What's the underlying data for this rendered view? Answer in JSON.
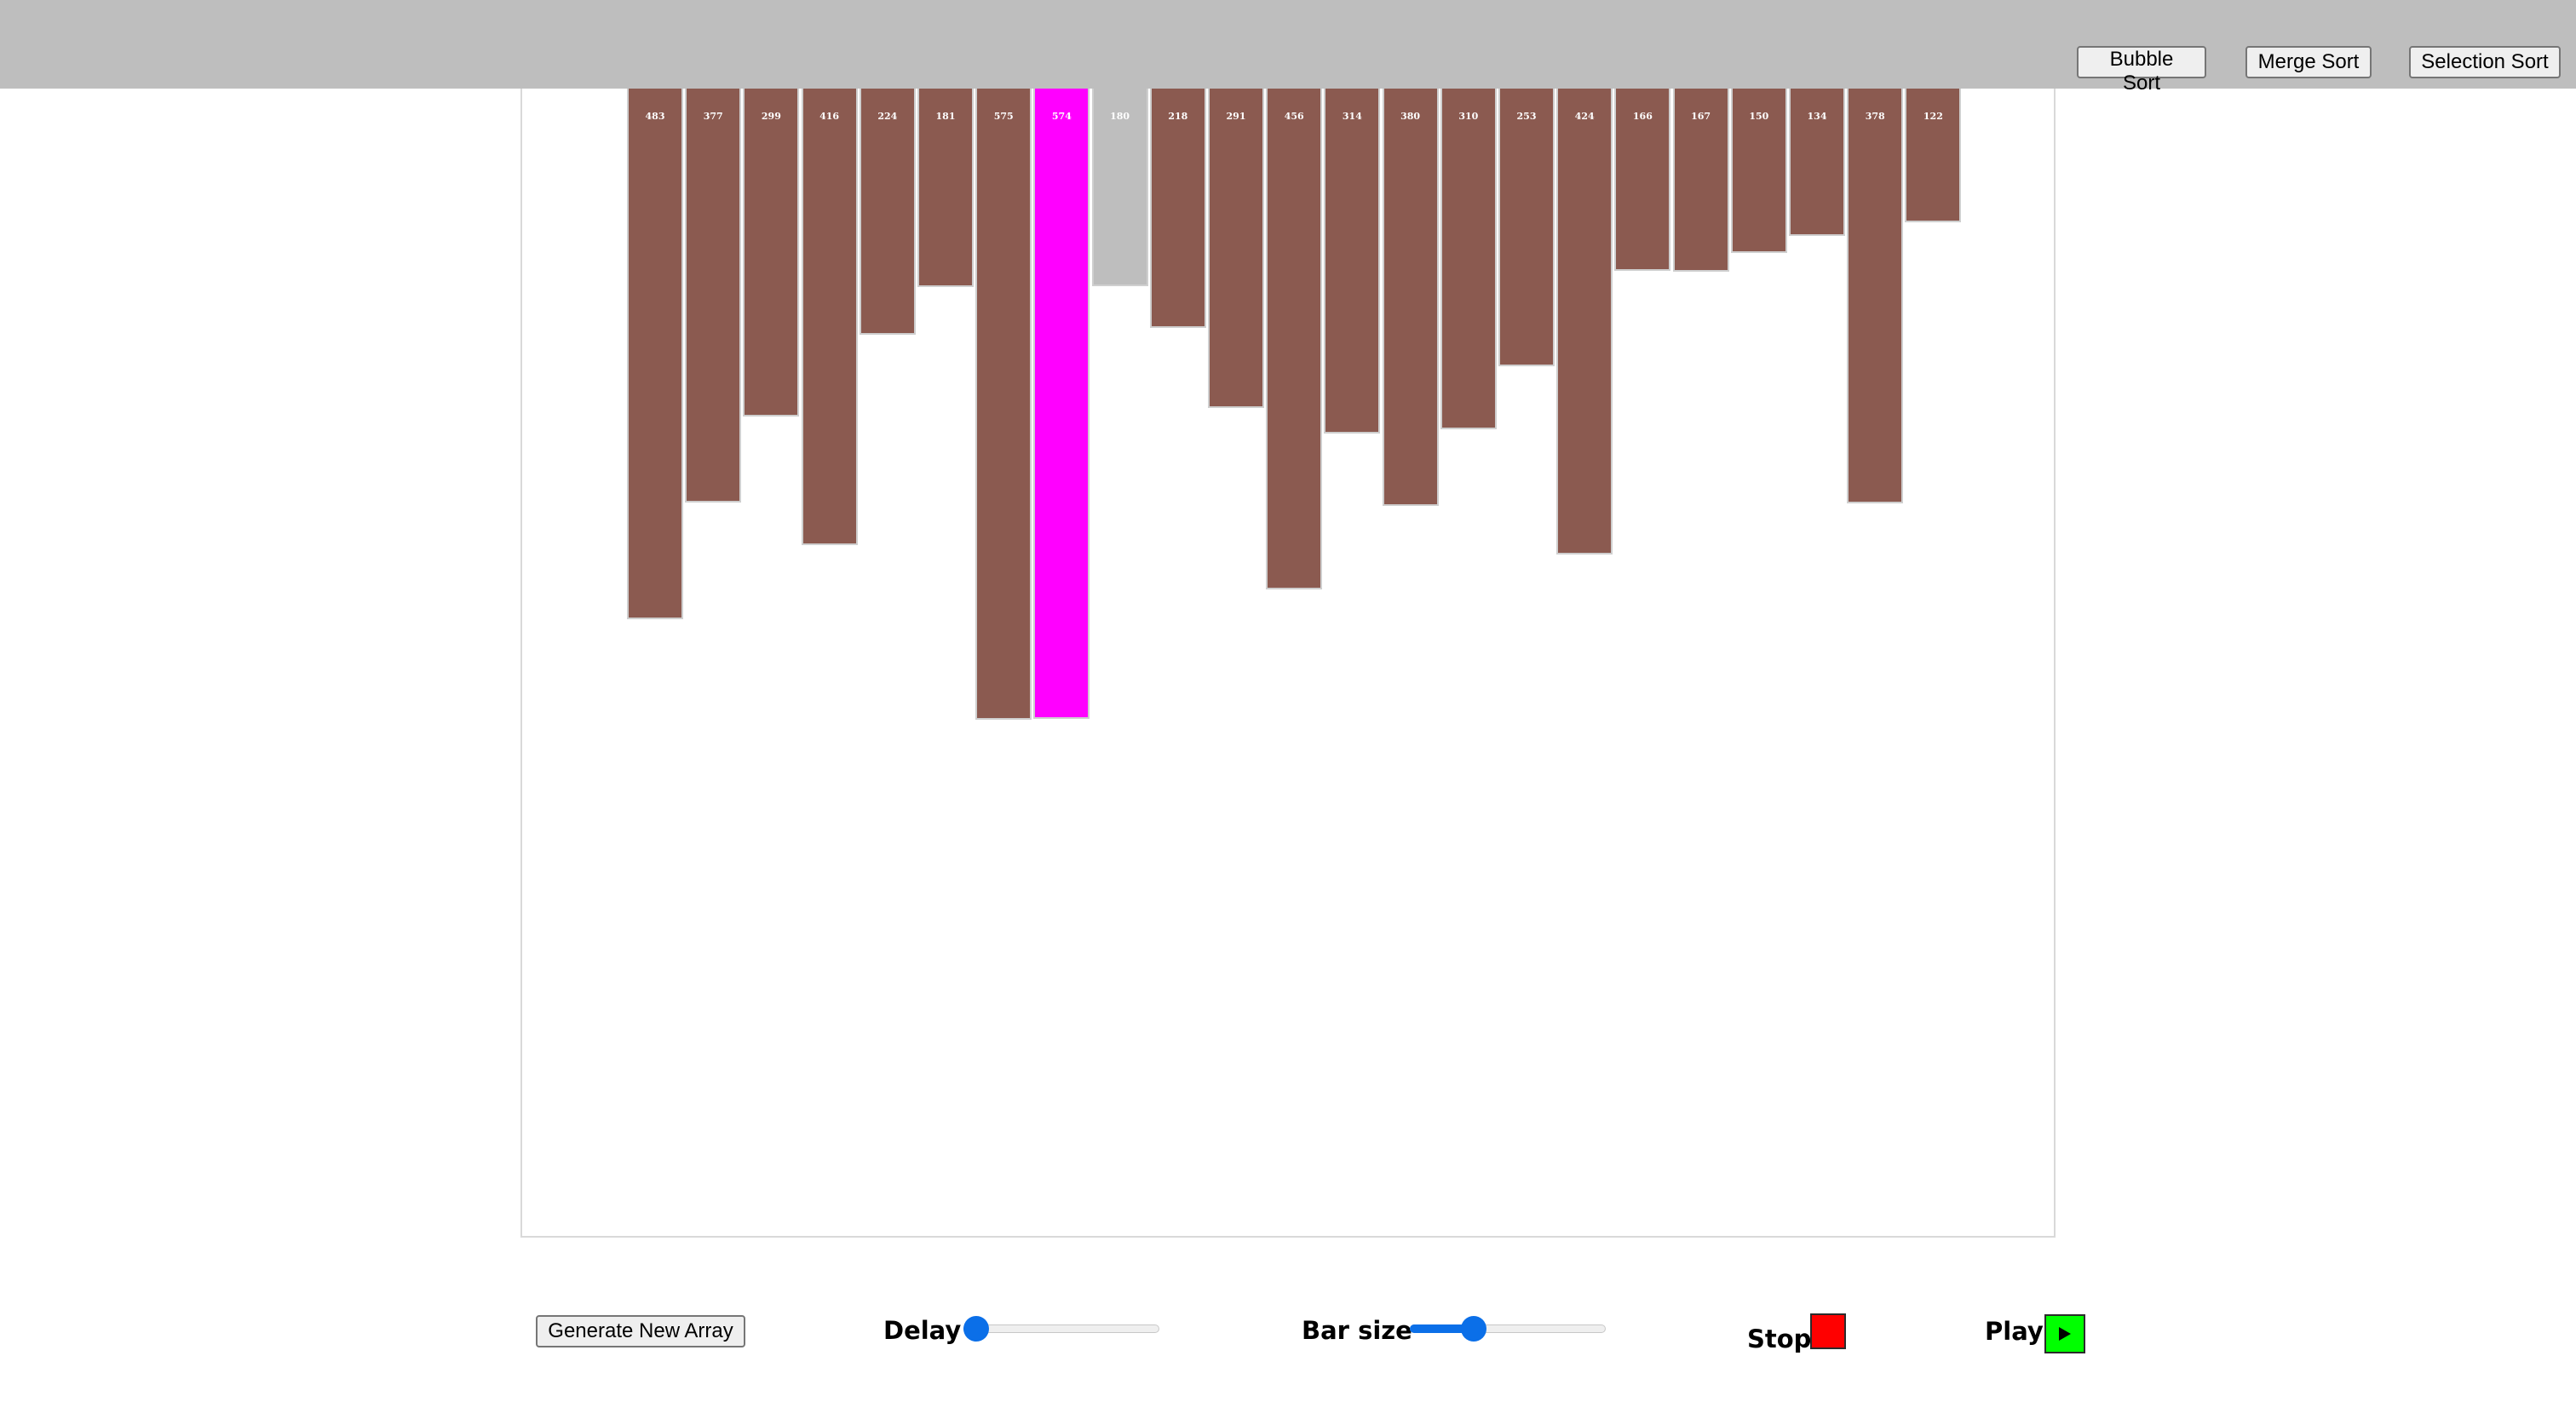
{
  "header": {
    "bubble_sort_label": "Bubble Sort",
    "merge_sort_label": "Merge Sort",
    "selection_sort_label": "Selection Sort"
  },
  "colors": {
    "default_bar": "#8b5a50",
    "highlight_bar": "#ff00ff",
    "compare_bar": "#bebebe",
    "topbar": "#bebebe",
    "stop_button": "#ff0000",
    "play_button": "#00ff00",
    "slider_accent": "#0b6fe8"
  },
  "bars": [
    {
      "value": "483",
      "state": "default"
    },
    {
      "value": "377",
      "state": "default"
    },
    {
      "value": "299",
      "state": "default"
    },
    {
      "value": "416",
      "state": "default"
    },
    {
      "value": "224",
      "state": "default"
    },
    {
      "value": "181",
      "state": "default"
    },
    {
      "value": "575",
      "state": "default"
    },
    {
      "value": "574",
      "state": "highlight"
    },
    {
      "value": "180",
      "state": "compare"
    },
    {
      "value": "218",
      "state": "default"
    },
    {
      "value": "291",
      "state": "default"
    },
    {
      "value": "456",
      "state": "default"
    },
    {
      "value": "314",
      "state": "default"
    },
    {
      "value": "380",
      "state": "default"
    },
    {
      "value": "310",
      "state": "default"
    },
    {
      "value": "253",
      "state": "default"
    },
    {
      "value": "424",
      "state": "default"
    },
    {
      "value": "166",
      "state": "default"
    },
    {
      "value": "167",
      "state": "default"
    },
    {
      "value": "150",
      "state": "default"
    },
    {
      "value": "134",
      "state": "default"
    },
    {
      "value": "378",
      "state": "default"
    },
    {
      "value": "122",
      "state": "default"
    }
  ],
  "controls": {
    "generate_label": "Generate New Array",
    "delay_label": "Delay",
    "delay_level": 0.0,
    "bar_size_label": "Bar size",
    "bar_size_level": 0.3,
    "stop_label": "Stop",
    "play_label": "Play",
    "stop_icon": "stop-square-icon",
    "play_icon": "play-triangle-icon"
  }
}
